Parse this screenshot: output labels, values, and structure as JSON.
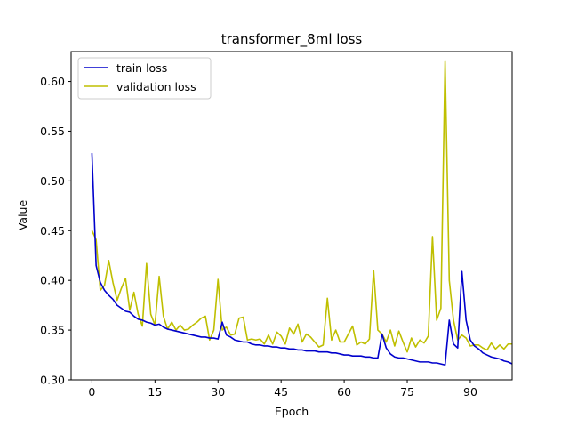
{
  "chart_data": {
    "type": "line",
    "title": "transformer_8ml loss",
    "xlabel": "Epoch",
    "ylabel": "Value",
    "xlim": [
      -4.95,
      99.95
    ],
    "ylim": [
      0.3,
      0.63
    ],
    "xticks": [
      0,
      15,
      30,
      45,
      60,
      75,
      90
    ],
    "yticks": [
      0.3,
      0.35,
      0.4,
      0.45,
      0.5,
      0.55,
      0.6
    ],
    "ytick_labels": [
      "0.30",
      "0.35",
      "0.40",
      "0.45",
      "0.50",
      "0.55",
      "0.60"
    ],
    "grid": false,
    "legend_position": "upper-left",
    "series": [
      {
        "name": "train loss",
        "color": "#0000cc",
        "values": [
          0.528,
          0.415,
          0.398,
          0.39,
          0.385,
          0.381,
          0.375,
          0.372,
          0.369,
          0.368,
          0.364,
          0.361,
          0.36,
          0.358,
          0.357,
          0.355,
          0.356,
          0.353,
          0.351,
          0.35,
          0.349,
          0.348,
          0.347,
          0.346,
          0.345,
          0.344,
          0.343,
          0.343,
          0.342,
          0.342,
          0.341,
          0.358,
          0.345,
          0.343,
          0.34,
          0.339,
          0.338,
          0.338,
          0.336,
          0.335,
          0.335,
          0.334,
          0.334,
          0.333,
          0.333,
          0.332,
          0.332,
          0.331,
          0.331,
          0.33,
          0.33,
          0.329,
          0.329,
          0.329,
          0.328,
          0.328,
          0.328,
          0.327,
          0.327,
          0.326,
          0.325,
          0.325,
          0.324,
          0.324,
          0.324,
          0.323,
          0.323,
          0.322,
          0.322,
          0.346,
          0.332,
          0.326,
          0.323,
          0.322,
          0.322,
          0.321,
          0.32,
          0.319,
          0.318,
          0.318,
          0.318,
          0.317,
          0.317,
          0.316,
          0.315,
          0.36,
          0.336,
          0.332,
          0.409,
          0.36,
          0.34,
          0.334,
          0.331,
          0.327,
          0.325,
          0.323,
          0.322,
          0.321,
          0.319,
          0.318,
          0.316
        ]
      },
      {
        "name": "validation loss",
        "color": "#bfbf00",
        "values": [
          0.45,
          0.441,
          0.39,
          0.395,
          0.42,
          0.398,
          0.38,
          0.392,
          0.402,
          0.37,
          0.388,
          0.366,
          0.354,
          0.417,
          0.366,
          0.355,
          0.404,
          0.364,
          0.351,
          0.358,
          0.35,
          0.355,
          0.35,
          0.351,
          0.355,
          0.358,
          0.362,
          0.364,
          0.34,
          0.35,
          0.401,
          0.35,
          0.353,
          0.345,
          0.346,
          0.362,
          0.363,
          0.34,
          0.341,
          0.34,
          0.341,
          0.336,
          0.345,
          0.336,
          0.348,
          0.344,
          0.336,
          0.352,
          0.346,
          0.356,
          0.338,
          0.346,
          0.343,
          0.338,
          0.333,
          0.335,
          0.382,
          0.34,
          0.35,
          0.338,
          0.338,
          0.346,
          0.354,
          0.335,
          0.338,
          0.336,
          0.341,
          0.41,
          0.35,
          0.346,
          0.338,
          0.35,
          0.334,
          0.349,
          0.338,
          0.328,
          0.342,
          0.333,
          0.34,
          0.337,
          0.344,
          0.444,
          0.36,
          0.372,
          0.62,
          0.4,
          0.36,
          0.34,
          0.345,
          0.342,
          0.334,
          0.335,
          0.335,
          0.332,
          0.33,
          0.337,
          0.331,
          0.335,
          0.331,
          0.336,
          0.336
        ]
      }
    ]
  }
}
